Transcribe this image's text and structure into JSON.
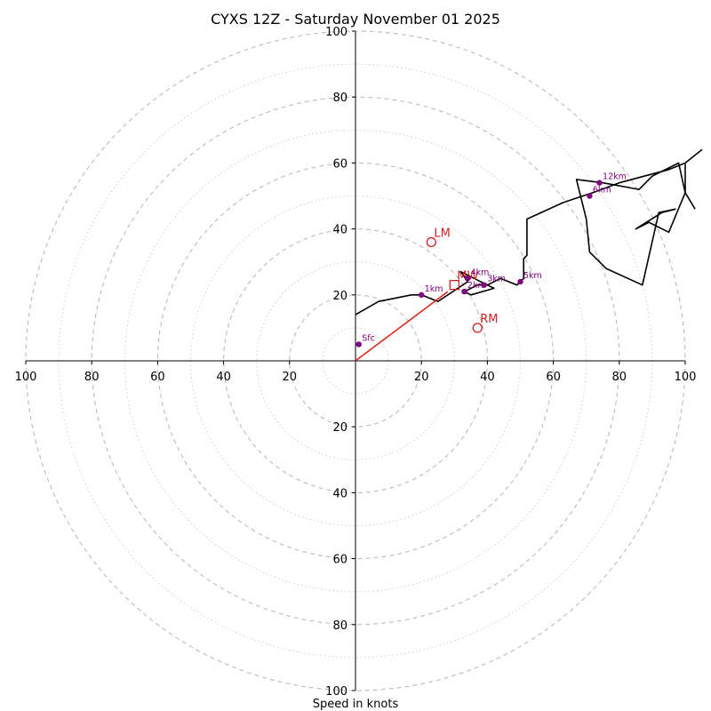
{
  "chart_data": {
    "type": "hodograph",
    "title": "CYXS 12Z - Saturday November 01 2025",
    "xlabel": "Speed in knots",
    "units": "knots",
    "rlim": [
      0,
      100
    ],
    "dashed_rings": [
      20,
      40,
      60,
      80,
      100
    ],
    "dotted_rings": [
      10,
      30,
      50,
      70,
      90
    ],
    "axis_ticks": {
      "x_left": [
        100,
        80,
        60,
        40,
        20
      ],
      "x_right": [
        20,
        40,
        60,
        80,
        100
      ],
      "y_up": [
        20,
        40,
        60,
        80,
        100
      ],
      "y_down": [
        20,
        40,
        60,
        80,
        100
      ]
    },
    "wind_trace": [
      [
        0,
        14
      ],
      [
        7,
        18
      ],
      [
        17,
        20
      ],
      [
        20,
        20
      ],
      [
        25,
        18
      ],
      [
        31,
        22
      ],
      [
        34,
        24
      ],
      [
        32,
        27
      ],
      [
        36,
        25
      ],
      [
        42,
        22
      ],
      [
        35,
        20
      ],
      [
        33,
        21
      ],
      [
        37,
        23
      ],
      [
        40,
        23
      ],
      [
        44,
        25
      ],
      [
        49,
        23
      ],
      [
        51,
        25
      ],
      [
        51,
        28
      ],
      [
        51,
        31
      ],
      [
        52,
        32
      ],
      [
        52,
        35
      ],
      [
        52,
        39
      ],
      [
        52,
        43
      ],
      [
        63,
        48
      ],
      [
        72,
        51
      ],
      [
        80,
        54
      ],
      [
        95,
        58
      ],
      [
        100,
        60
      ],
      [
        105,
        64
      ],
      [
        100,
        60
      ],
      [
        100,
        51
      ],
      [
        95,
        39
      ],
      [
        89,
        42
      ],
      [
        85,
        40
      ],
      [
        93,
        45
      ],
      [
        97,
        46
      ],
      [
        92,
        45
      ],
      [
        87,
        23
      ],
      [
        76,
        28
      ],
      [
        71,
        33
      ],
      [
        70,
        43
      ],
      [
        67,
        55
      ],
      [
        75,
        54
      ],
      [
        86,
        52
      ],
      [
        90,
        56
      ],
      [
        98,
        60
      ],
      [
        100,
        51
      ],
      [
        103,
        46
      ]
    ],
    "height_markers": [
      {
        "label": "Sfc",
        "u": 1,
        "v": 5
      },
      {
        "label": "1km",
        "u": 20,
        "v": 20
      },
      {
        "label": "2km",
        "u": 33,
        "v": 21
      },
      {
        "label": "3km",
        "u": 39,
        "v": 23
      },
      {
        "label": "4km",
        "u": 34,
        "v": 25
      },
      {
        "label": "5km",
        "u": 50,
        "v": 24
      },
      {
        "label": "6km",
        "u": 71,
        "v": 50
      },
      {
        "label": "12km",
        "u": 74,
        "v": 54
      }
    ],
    "storm_motion": [
      {
        "label": "LM",
        "u": 23,
        "v": 36,
        "marker": "circle"
      },
      {
        "label": "RM",
        "u": 37,
        "v": 10,
        "marker": "circle"
      },
      {
        "label": "MW",
        "u": 30,
        "v": 23,
        "marker": "square"
      }
    ],
    "shear_vector": {
      "u0": 0,
      "v0": 0,
      "u1": 28,
      "v1": 21
    },
    "colors": {
      "trace": "#000000",
      "markers": "#800080",
      "storm_motion": "#cc2222",
      "shear": "#e02010",
      "grid": "#bbbbbb"
    }
  }
}
